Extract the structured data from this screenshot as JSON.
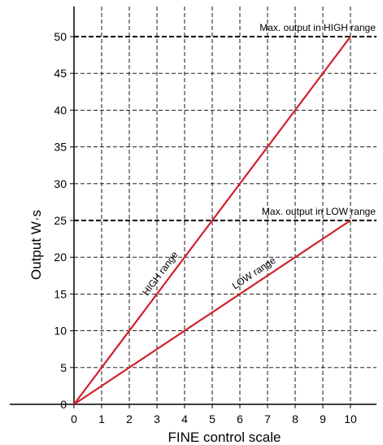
{
  "chart_data": {
    "type": "line",
    "title": "",
    "xlabel": "FINE control scale",
    "ylabel": "Output W·s",
    "xlim": [
      0,
      10
    ],
    "ylim": [
      0,
      50
    ],
    "x_ticks": [
      0,
      1,
      2,
      3,
      4,
      5,
      6,
      7,
      8,
      9,
      10
    ],
    "y_ticks": [
      0,
      5,
      10,
      15,
      20,
      25,
      30,
      35,
      40,
      45,
      50
    ],
    "grid": true,
    "grid_style": "dashed",
    "series_color": "#d0212b",
    "series": [
      {
        "name": "HIGH range",
        "x": [
          0,
          10
        ],
        "y": [
          0,
          50
        ]
      },
      {
        "name": "LOW range",
        "x": [
          0,
          10
        ],
        "y": [
          0,
          25
        ]
      }
    ],
    "annotations": [
      {
        "text": "Max. output in HIGH range",
        "y": 50
      },
      {
        "text": "Max. output in LOW range",
        "y": 25
      }
    ]
  }
}
